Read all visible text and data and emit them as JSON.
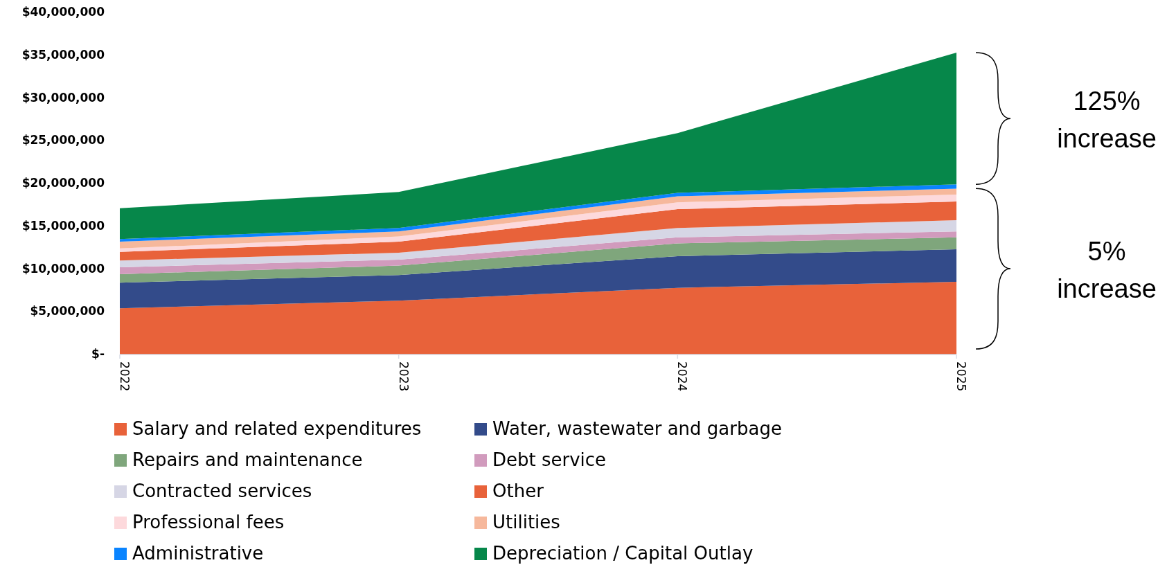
{
  "chart_data": {
    "type": "area",
    "stacked": true,
    "categories": [
      "2022",
      "2023",
      "2024",
      "2025"
    ],
    "series": [
      {
        "name": "Salary and related expenditures",
        "color": "#e8623a",
        "values": [
          5400000,
          6300000,
          7800000,
          8500000
        ]
      },
      {
        "name": "Water, wastewater and garbage",
        "color": "#334b8a",
        "values": [
          3000000,
          3000000,
          3700000,
          3800000
        ]
      },
      {
        "name": "Repairs and maintenance",
        "color": "#7fa67c",
        "values": [
          1000000,
          1100000,
          1500000,
          1400000
        ]
      },
      {
        "name": "Debt service",
        "color": "#d19bbd",
        "values": [
          800000,
          700000,
          700000,
          700000
        ]
      },
      {
        "name": "Contracted services",
        "color": "#d6d6e5",
        "values": [
          800000,
          800000,
          1100000,
          1300000
        ]
      },
      {
        "name": "Other",
        "color": "#e8623a",
        "values": [
          1000000,
          1300000,
          2200000,
          2200000
        ]
      },
      {
        "name": "Professional fees",
        "color": "#fdd9dc",
        "values": [
          400000,
          600000,
          800000,
          800000
        ]
      },
      {
        "name": "Utilities",
        "color": "#f6b89c",
        "values": [
          800000,
          600000,
          700000,
          700000
        ]
      },
      {
        "name": "Administrative",
        "color": "#0a84ff",
        "values": [
          300000,
          400000,
          400000,
          500000
        ]
      },
      {
        "name": "Depreciation / Capital Outlay",
        "color": "#06874a",
        "values": [
          3600000,
          4200000,
          7000000,
          15400000
        ]
      }
    ],
    "ylim": [
      0,
      40000000
    ],
    "yticks": [
      {
        "value": 0,
        "label": "$-"
      },
      {
        "value": 5000000,
        "label": "$5,000,000"
      },
      {
        "value": 10000000,
        "label": "$10,000,000"
      },
      {
        "value": 15000000,
        "label": "$15,000,000"
      },
      {
        "value": 20000000,
        "label": "$20,000,000"
      },
      {
        "value": 25000000,
        "label": "$25,000,000"
      },
      {
        "value": 30000000,
        "label": "$30,000,000"
      },
      {
        "value": 35000000,
        "label": "$35,000,000"
      },
      {
        "value": 40000000,
        "label": "$40,000,000"
      }
    ],
    "annotations": [
      "125% increase",
      "5% increase"
    ],
    "legend": "bottom",
    "grid": false
  }
}
